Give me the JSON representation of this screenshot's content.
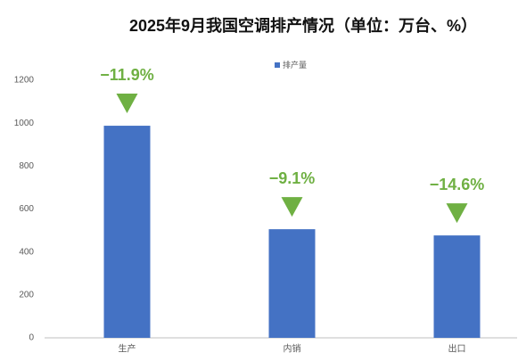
{
  "chart_data": {
    "type": "bar",
    "title": "2025年9月我国空调排产情况（单位：万台、%）",
    "categories": [
      "生产",
      "内销",
      "出口"
    ],
    "series": [
      {
        "name": "排产量",
        "color": "#4472c4",
        "values": [
          988,
          506,
          477
        ]
      }
    ],
    "annotations": [
      "−11.9%",
      "−9.1%",
      "−14.6%"
    ],
    "annotation_color": "#6fb043",
    "ylim": [
      0,
      1200
    ],
    "yticks": [
      0,
      200,
      400,
      600,
      800,
      1000,
      1200
    ],
    "grid": false,
    "legend": "top"
  }
}
